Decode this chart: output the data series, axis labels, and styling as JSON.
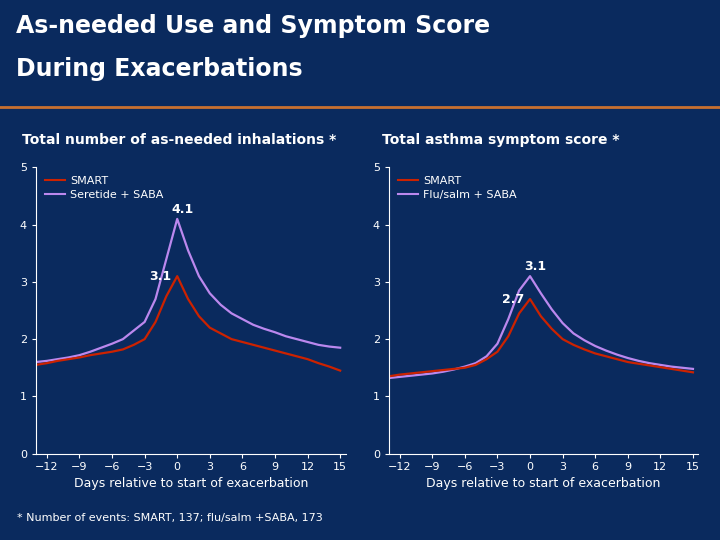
{
  "background_color": "#0a2a5e",
  "title_line1": "As-needed Use and Symptom Score",
  "title_line2": "During Exacerbations",
  "title_color": "#ffffff",
  "title_fontsize": 17,
  "subtitle1": "Total number of as-needed inhalations *",
  "subtitle2": "Total asthma symptom score *",
  "subtitle_color": "#ffffff",
  "subtitle_fontsize": 10,
  "footnote": "* Number of events: SMART, 137; flu/salm +SABA, 173",
  "footnote_color": "#ffffff",
  "footnote_fontsize": 8,
  "xlabel": "Days relative to start of exacerbation",
  "xlabel_color": "#ffffff",
  "xlabel_fontsize": 9,
  "tick_color": "#ffffff",
  "tick_fontsize": 8,
  "spine_color": "#ffffff",
  "ylim": [
    0,
    5
  ],
  "yticks": [
    0,
    1,
    2,
    3,
    4,
    5
  ],
  "xticks": [
    -12,
    -9,
    -6,
    -3,
    0,
    3,
    6,
    9,
    12,
    15
  ],
  "color_smart": "#cc2200",
  "color_control1": "#bb88ee",
  "color_control2": "#bb88ee",
  "legend1_labels": [
    "SMART",
    "Seretide + SABA"
  ],
  "legend2_labels": [
    "SMART",
    "Flu/salm + SABA"
  ],
  "days": [
    -13,
    -12,
    -11,
    -10,
    -9,
    -8,
    -7,
    -6,
    -5,
    -4,
    -3,
    -2,
    -1,
    0,
    1,
    2,
    3,
    4,
    5,
    6,
    7,
    8,
    9,
    10,
    11,
    12,
    13,
    14,
    15
  ],
  "chart1_smart": [
    1.55,
    1.58,
    1.62,
    1.65,
    1.68,
    1.72,
    1.75,
    1.78,
    1.82,
    1.9,
    2.0,
    2.3,
    2.75,
    3.1,
    2.7,
    2.4,
    2.2,
    2.1,
    2.0,
    1.95,
    1.9,
    1.85,
    1.8,
    1.75,
    1.7,
    1.65,
    1.58,
    1.52,
    1.45
  ],
  "chart1_control": [
    1.6,
    1.62,
    1.65,
    1.68,
    1.72,
    1.78,
    1.85,
    1.92,
    2.0,
    2.15,
    2.3,
    2.7,
    3.4,
    4.1,
    3.55,
    3.1,
    2.8,
    2.6,
    2.45,
    2.35,
    2.25,
    2.18,
    2.12,
    2.05,
    2.0,
    1.95,
    1.9,
    1.87,
    1.85
  ],
  "chart2_smart": [
    1.35,
    1.38,
    1.4,
    1.42,
    1.44,
    1.46,
    1.48,
    1.5,
    1.55,
    1.65,
    1.78,
    2.05,
    2.45,
    2.7,
    2.4,
    2.18,
    2.0,
    1.9,
    1.82,
    1.75,
    1.7,
    1.65,
    1.6,
    1.57,
    1.54,
    1.51,
    1.48,
    1.45,
    1.42
  ],
  "chart2_control": [
    1.32,
    1.34,
    1.36,
    1.38,
    1.4,
    1.43,
    1.47,
    1.52,
    1.58,
    1.7,
    1.92,
    2.35,
    2.85,
    3.1,
    2.8,
    2.52,
    2.28,
    2.1,
    1.98,
    1.88,
    1.8,
    1.73,
    1.67,
    1.62,
    1.58,
    1.55,
    1.52,
    1.5,
    1.48
  ],
  "annot1_smart_label": "3.1",
  "annot1_ctrl_label": "4.1",
  "annot2_smart_label": "2.7",
  "annot2_ctrl_label": "3.1",
  "orange_line_color": "#c87030",
  "legend_fontsize": 8
}
